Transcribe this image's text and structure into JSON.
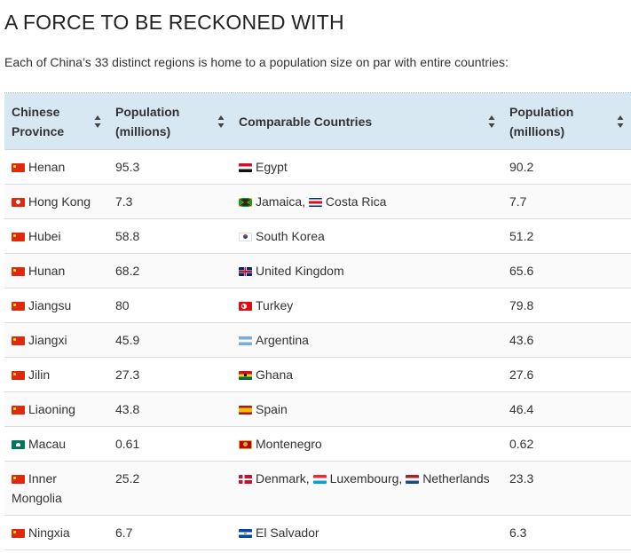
{
  "title": "A FORCE TO BE RECKONED WITH",
  "subtitle": "Each of China’s 33 distinct regions is home to a population size on par with entire countries:",
  "table": {
    "headers": [
      {
        "label": "Chinese Province"
      },
      {
        "label": "Population (millions)"
      },
      {
        "label": "Comparable Countries"
      },
      {
        "label": "Population (millions)"
      }
    ],
    "rows": [
      {
        "province": "Henan",
        "province_flag": "flag-china",
        "pop": "95.3",
        "countries": [
          {
            "name": "Egypt",
            "flag": "flag-egypt"
          }
        ],
        "country_pop": "90.2"
      },
      {
        "province": "Hong Kong",
        "province_flag": "flag-hongkong",
        "pop": "7.3",
        "countries": [
          {
            "name": "Jamaica",
            "flag": "flag-jamaica"
          },
          {
            "name": "Costa Rica",
            "flag": "flag-costarica"
          }
        ],
        "country_pop": "7.7"
      },
      {
        "province": "Hubei",
        "province_flag": "flag-china",
        "pop": "58.8",
        "countries": [
          {
            "name": "South Korea",
            "flag": "flag-southkorea"
          }
        ],
        "country_pop": "51.2"
      },
      {
        "province": "Hunan",
        "province_flag": "flag-china",
        "pop": "68.2",
        "countries": [
          {
            "name": "United Kingdom",
            "flag": "flag-uk"
          }
        ],
        "country_pop": "65.6"
      },
      {
        "province": "Jiangsu",
        "province_flag": "flag-china",
        "pop": "80",
        "countries": [
          {
            "name": "Turkey",
            "flag": "flag-turkey"
          }
        ],
        "country_pop": "79.8"
      },
      {
        "province": "Jiangxi",
        "province_flag": "flag-china",
        "pop": "45.9",
        "countries": [
          {
            "name": "Argentina",
            "flag": "flag-argentina"
          }
        ],
        "country_pop": "43.6"
      },
      {
        "province": "Jilin",
        "province_flag": "flag-china",
        "pop": "27.3",
        "countries": [
          {
            "name": "Ghana",
            "flag": "flag-ghana"
          }
        ],
        "country_pop": "27.6"
      },
      {
        "province": "Liaoning",
        "province_flag": "flag-china",
        "pop": "43.8",
        "countries": [
          {
            "name": "Spain",
            "flag": "flag-spain"
          }
        ],
        "country_pop": "46.4"
      },
      {
        "province": "Macau",
        "province_flag": "flag-macau",
        "pop": "0.61",
        "countries": [
          {
            "name": "Montenegro",
            "flag": "flag-montenegro"
          }
        ],
        "country_pop": "0.62"
      },
      {
        "province": "Inner Mongolia",
        "province_flag": "flag-china",
        "pop": "25.2",
        "countries": [
          {
            "name": "Denmark",
            "flag": "flag-denmark"
          },
          {
            "name": "Luxembourg",
            "flag": "flag-luxembourg"
          },
          {
            "name": "Netherlands",
            "flag": "flag-netherlands"
          }
        ],
        "country_pop": "23.3"
      },
      {
        "province": "Ningxia",
        "province_flag": "flag-china",
        "pop": "6.7",
        "countries": [
          {
            "name": "El Salvador",
            "flag": "flag-elsalvador"
          }
        ],
        "country_pop": "6.3"
      }
    ]
  },
  "colors": {
    "header_bg": "#d7e8f3",
    "row_border": "#dcdcdc",
    "text": "#333333"
  },
  "icons": {
    "sort": "sort-icon"
  }
}
